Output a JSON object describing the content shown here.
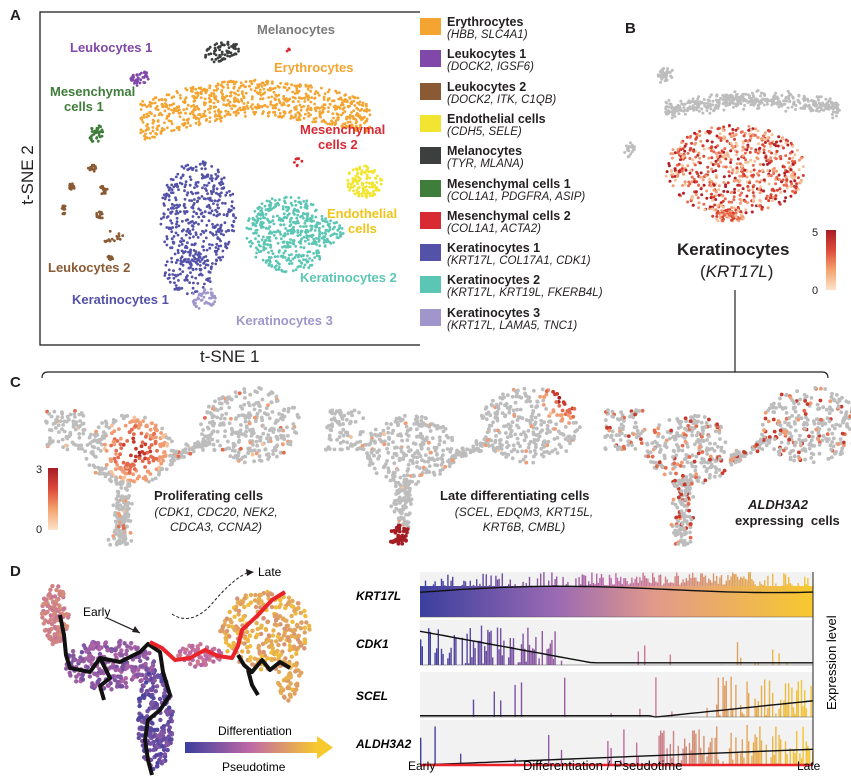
{
  "panels": {
    "A": "A",
    "B": "B",
    "C": "C",
    "D": "D"
  },
  "tsne": {
    "xlabel": "t-SNE 1",
    "ylabel": "t-SNE 2",
    "labels": {
      "melanocytes": "Melanocytes",
      "leukocytes1": "Leukocytes 1",
      "erythrocytes": "Erythrocytes",
      "mesenchymal1_l1": "Mesenchymal",
      "mesenchymal1_l2": "cells 1",
      "mesenchymal2_l1": "Mesenchymal",
      "mesenchymal2_l2": "cells 2",
      "endothelial_l1": "Endothelial",
      "endothelial_l2": "cells",
      "leukocytes2": "Leukocytes 2",
      "keratinocytes1": "Keratinocytes 1",
      "keratinocytes2": "Keratinocytes 2",
      "keratinocytes3": "Keratinocytes 3"
    }
  },
  "legend": [
    {
      "name": "Erythrocytes",
      "markers": "(HBB, SLC4A1)",
      "color": "#f4a430"
    },
    {
      "name": "Leukocytes 1",
      "markers": "(DOCK2, IGSF6)",
      "color": "#8048a8"
    },
    {
      "name": "Leukocytes 2",
      "markers": "(DOCK2, ITK, C1QB)",
      "color": "#8a5a34"
    },
    {
      "name": "Endothelial cells",
      "markers": "(CDH5, SELE)",
      "color": "#f2e531"
    },
    {
      "name": "Melanocytes",
      "markers": "(TYR, MLANA)",
      "color": "#3d3f3f"
    },
    {
      "name": "Mesenchymal cells 1",
      "markers": "(COL1A1, PDGFRA, ASIP)",
      "color": "#3f7d3a"
    },
    {
      "name": "Mesenchymal cells 2",
      "markers": "(COL1A1, ACTA2)",
      "color": "#d82a33"
    },
    {
      "name": "Keratinocytes 1",
      "markers": "(KRT17L, COL17A1, CDK1)",
      "color": "#5452a8"
    },
    {
      "name": "Keratinocytes 2",
      "markers": "(KRT17L, KRT19L, FKERB4L)",
      "color": "#5cc6b4"
    },
    {
      "name": "Keratinocytes 3",
      "markers": "(KRT17L, LAMA5, TNC1)",
      "color": "#a196cc"
    }
  ],
  "panelB": {
    "title": "Keratinocytes",
    "gene": "KRT17L",
    "scale_max": "5",
    "scale_min": "0"
  },
  "panelC": {
    "scale_max": "3",
    "scale_min": "0",
    "prolif_title": "Proliferating cells",
    "prolif_genes_l1": "CDK1, CDC20, NEK2,",
    "prolif_genes_l2": "CDCA3, CCNA2",
    "late_title": "Late differentiating cells",
    "late_genes_l1": "SCEL, EDQM3, KRT15L,",
    "late_genes_l2": "KRT6B, CMBL",
    "aldh_gene": "ALDH3A2",
    "aldh_title": "expressing  cells"
  },
  "panelD": {
    "early": "Early",
    "late": "Late",
    "arrow_label": "Differentiation",
    "pseudotime": "Pseudotime",
    "genes": [
      "KRT17L",
      "CDK1",
      "SCEL",
      "ALDH3A2"
    ],
    "xaxis_early": "Early",
    "xaxis_mid": "Differentiation  / Pseudotime",
    "xaxis_late": "Late",
    "ylabel": "Expression level"
  },
  "colors": {
    "grey_cell": "#bdbdbd",
    "expr_low": "#f6c29a",
    "expr_high": "#b01d27",
    "pt_start": "#3b3f9e",
    "pt_mid": "#c069a6",
    "pt_end": "#f7c92e"
  }
}
